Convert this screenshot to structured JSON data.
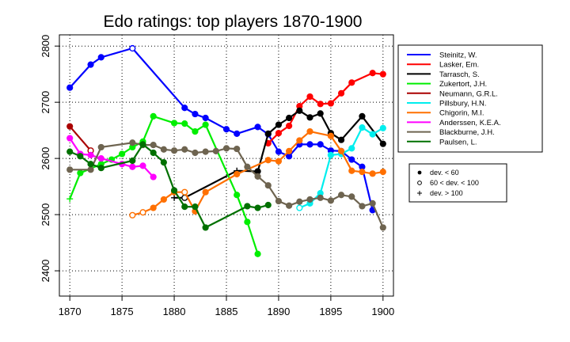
{
  "chart_data": {
    "type": "line",
    "title": "Edo ratings: top players 1870-1900",
    "xlabel": "",
    "ylabel": "",
    "xlim": [
      1869,
      1901
    ],
    "ylim": [
      2355,
      2820
    ],
    "x_ticks": [
      1870,
      1875,
      1880,
      1885,
      1890,
      1895,
      1900
    ],
    "y_ticks": [
      2400,
      2500,
      2600,
      2700,
      2800
    ],
    "grid": true,
    "grid_style": "dotted",
    "legend_position": "right",
    "marker_legend": [
      {
        "symbol": "filled-circle",
        "label": "dev. < 60"
      },
      {
        "symbol": "open-circle",
        "label": "60 < dev. < 100"
      },
      {
        "symbol": "plus",
        "label": "dev. > 100"
      }
    ],
    "series": [
      {
        "name": "Steinitz, W.",
        "color": "#0000ff",
        "points": [
          [
            1870,
            2726
          ],
          [
            1872,
            2767
          ],
          [
            1873,
            2780
          ],
          [
            1876,
            2796
          ],
          [
            1881,
            2690
          ],
          [
            1882,
            2679
          ],
          [
            1883,
            2672
          ],
          [
            1885,
            2652
          ],
          [
            1886,
            2644
          ],
          [
            1888,
            2656
          ],
          [
            1889,
            2643
          ],
          [
            1890,
            2612
          ],
          [
            1891,
            2604
          ],
          [
            1892,
            2625
          ],
          [
            1893,
            2625
          ],
          [
            1894,
            2625
          ],
          [
            1895,
            2614
          ],
          [
            1896,
            2613
          ],
          [
            1897,
            2598
          ],
          [
            1898,
            2585
          ],
          [
            1899,
            2508
          ]
        ],
        "markers": [
          "filled",
          "filled",
          "filled",
          "open",
          "filled",
          "filled",
          "filled",
          "filled",
          "filled",
          "filled",
          "filled",
          "filled",
          "filled",
          "filled",
          "filled",
          "filled",
          "filled",
          "filled",
          "filled",
          "filled",
          "filled"
        ]
      },
      {
        "name": "Lasker, Em.",
        "color": "#ff0000",
        "points": [
          [
            1889,
            2627
          ],
          [
            1890,
            2645
          ],
          [
            1891,
            2658
          ],
          [
            1892,
            2693
          ],
          [
            1893,
            2710
          ],
          [
            1894,
            2697
          ],
          [
            1895,
            2698
          ],
          [
            1896,
            2716
          ],
          [
            1897,
            2735
          ],
          [
            1899,
            2752
          ],
          [
            1900,
            2750
          ]
        ],
        "markers": [
          "filled",
          "filled",
          "filled",
          "filled",
          "filled",
          "filled",
          "filled",
          "filled",
          "filled",
          "filled",
          "filled"
        ]
      },
      {
        "name": "Tarrasch, S.",
        "color": "#000000",
        "points": [
          [
            1880,
            2530
          ],
          [
            1881,
            2530
          ],
          [
            1886,
            2578
          ],
          [
            1888,
            2577
          ],
          [
            1889,
            2644
          ],
          [
            1890,
            2660
          ],
          [
            1891,
            2672
          ],
          [
            1892,
            2685
          ],
          [
            1893,
            2673
          ],
          [
            1894,
            2680
          ],
          [
            1895,
            2645
          ],
          [
            1896,
            2633
          ],
          [
            1898,
            2675
          ],
          [
            1900,
            2626
          ]
        ],
        "markers": [
          "plus",
          "open",
          "plus",
          "filled",
          "filled",
          "filled",
          "filled",
          "filled",
          "filled",
          "filled",
          "filled",
          "filled",
          "filled",
          "filled"
        ]
      },
      {
        "name": "Zukertort, J.H.",
        "color": "#00ee00",
        "points": [
          [
            1870,
            2528
          ],
          [
            1871,
            2574
          ],
          [
            1873,
            2590
          ],
          [
            1874,
            2598
          ],
          [
            1875,
            2608
          ],
          [
            1876,
            2620
          ],
          [
            1877,
            2630
          ],
          [
            1878,
            2675
          ],
          [
            1880,
            2663
          ],
          [
            1881,
            2662
          ],
          [
            1882,
            2648
          ],
          [
            1883,
            2660
          ],
          [
            1886,
            2535
          ],
          [
            1887,
            2487
          ],
          [
            1888,
            2430
          ]
        ],
        "markers": [
          "plus",
          "filled",
          "filled",
          "filled",
          "filled",
          "filled",
          "filled",
          "filled",
          "filled",
          "filled",
          "filled",
          "filled",
          "filled",
          "filled",
          "filled"
        ]
      },
      {
        "name": "Neumann, G.R.L.",
        "color": "#aa0000",
        "points": [
          [
            1870,
            2657
          ],
          [
            1872,
            2614
          ]
        ],
        "markers": [
          "filled",
          "open"
        ]
      },
      {
        "name": "Pillsbury, H.N.",
        "color": "#00eeee",
        "points": [
          [
            1892,
            2512
          ],
          [
            1893,
            2520
          ],
          [
            1894,
            2538
          ],
          [
            1895,
            2606
          ],
          [
            1896,
            2608
          ],
          [
            1897,
            2618
          ],
          [
            1898,
            2655
          ],
          [
            1899,
            2643
          ],
          [
            1900,
            2654
          ]
        ],
        "markers": [
          "open",
          "filled",
          "filled",
          "filled",
          "filled",
          "filled",
          "filled",
          "filled",
          "filled"
        ]
      },
      {
        "name": "Chigorin, M.I.",
        "color": "#ff7000",
        "points": [
          [
            1876,
            2499
          ],
          [
            1877,
            2504
          ],
          [
            1878,
            2512
          ],
          [
            1879,
            2527
          ],
          [
            1880,
            2540
          ],
          [
            1881,
            2540
          ],
          [
            1882,
            2506
          ],
          [
            1883,
            2540
          ],
          [
            1886,
            2572
          ],
          [
            1889,
            2597
          ],
          [
            1890,
            2595
          ],
          [
            1891,
            2613
          ],
          [
            1892,
            2632
          ],
          [
            1893,
            2648
          ],
          [
            1895,
            2640
          ],
          [
            1896,
            2613
          ],
          [
            1897,
            2578
          ],
          [
            1898,
            2576
          ],
          [
            1899,
            2573
          ],
          [
            1900,
            2576
          ]
        ],
        "markers": [
          "open",
          "open",
          "filled",
          "filled",
          "filled",
          "open",
          "filled",
          "filled",
          "filled",
          "filled",
          "filled",
          "filled",
          "filled",
          "filled",
          "filled",
          "filled",
          "filled",
          "filled",
          "filled",
          "filled"
        ]
      },
      {
        "name": "Anderssen, K.E.A.",
        "color": "#ff00ff",
        "points": [
          [
            1870,
            2636
          ],
          [
            1871,
            2608
          ],
          [
            1872,
            2606
          ],
          [
            1873,
            2600
          ],
          [
            1875,
            2590
          ],
          [
            1876,
            2585
          ],
          [
            1877,
            2587
          ],
          [
            1878,
            2567
          ]
        ],
        "markers": [
          "filled",
          "filled",
          "filled",
          "filled",
          "filled",
          "filled",
          "filled",
          "filled"
        ]
      },
      {
        "name": "Blackburne, J.H.",
        "color": "#6e6450",
        "points": [
          [
            1870,
            2580
          ],
          [
            1872,
            2580
          ],
          [
            1873,
            2620
          ],
          [
            1876,
            2628
          ],
          [
            1877,
            2624
          ],
          [
            1878,
            2624
          ],
          [
            1879,
            2616
          ],
          [
            1880,
            2614
          ],
          [
            1881,
            2616
          ],
          [
            1882,
            2610
          ],
          [
            1883,
            2612
          ],
          [
            1884,
            2613
          ],
          [
            1885,
            2618
          ],
          [
            1886,
            2617
          ],
          [
            1887,
            2585
          ],
          [
            1888,
            2568
          ],
          [
            1889,
            2552
          ],
          [
            1890,
            2524
          ],
          [
            1891,
            2516
          ],
          [
            1892,
            2523
          ],
          [
            1893,
            2527
          ],
          [
            1894,
            2530
          ],
          [
            1895,
            2525
          ],
          [
            1896,
            2535
          ],
          [
            1897,
            2532
          ],
          [
            1898,
            2515
          ],
          [
            1899,
            2520
          ],
          [
            1900,
            2477
          ]
        ],
        "markers": [
          "filled",
          "filled",
          "filled",
          "filled",
          "filled",
          "filled",
          "filled",
          "filled",
          "filled",
          "filled",
          "filled",
          "filled",
          "filled",
          "filled",
          "filled",
          "filled",
          "filled",
          "filled",
          "filled",
          "filled",
          "filled",
          "filled",
          "filled",
          "filled",
          "filled",
          "filled",
          "filled",
          "filled"
        ]
      },
      {
        "name": "Paulsen, L.",
        "color": "#007000",
        "points": [
          [
            1870,
            2612
          ],
          [
            1871,
            2604
          ],
          [
            1872,
            2590
          ],
          [
            1873,
            2583
          ],
          [
            1876,
            2596
          ],
          [
            1877,
            2625
          ],
          [
            1878,
            2610
          ],
          [
            1879,
            2593
          ],
          [
            1880,
            2543
          ],
          [
            1881,
            2514
          ],
          [
            1882,
            2514
          ],
          [
            1883,
            2477
          ],
          [
            1887,
            2515
          ],
          [
            1888,
            2512
          ],
          [
            1889,
            2517
          ]
        ],
        "markers": [
          "filled",
          "filled",
          "filled",
          "filled",
          "filled",
          "filled",
          "filled",
          "filled",
          "filled",
          "filled",
          "filled",
          "filled",
          "filled",
          "filled",
          "filled"
        ]
      }
    ]
  }
}
